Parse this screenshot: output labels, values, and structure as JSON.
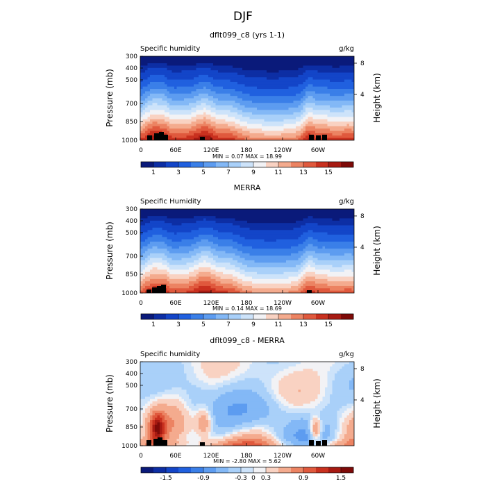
{
  "figure_title": "DJF",
  "colors": {
    "full_scale": [
      "#0a1a7a",
      "#0d2ea4",
      "#1345c8",
      "#2060df",
      "#3a7fe8",
      "#5d9cf0",
      "#83b8f6",
      "#a9d0f9",
      "#cde3fa",
      "#f2f2f5",
      "#f9d2c2",
      "#f4ab8e",
      "#ec8362",
      "#e0593d",
      "#c9311f",
      "#a71a12",
      "#7e0a08"
    ],
    "diff_scale": [
      "#0a1a7a",
      "#0d2ea4",
      "#1345c8",
      "#2060df",
      "#3a7fe8",
      "#5d9cf0",
      "#83b8f6",
      "#a9d0f9",
      "#cde3fa",
      "#f2f2f5",
      "#f9d2c2",
      "#f4ab8e",
      "#ec8362",
      "#e0593d",
      "#c9311f",
      "#a71a12",
      "#7e0a08"
    ],
    "terrain": "#000000"
  },
  "chart_data": [
    {
      "type": "heatmap",
      "title": "dflt099_c8 (yrs 1-1)",
      "left_label": "Specific humidity",
      "units": "g/kg",
      "ylabel": "Pressure (mb)",
      "ylabel_right": "Height (km)",
      "y_ticks": [
        "300",
        "400",
        "500",
        "700",
        "850",
        "1000"
      ],
      "y_right_ticks": [
        "8",
        "4"
      ],
      "x_ticks": [
        "0",
        "60E",
        "120E",
        "180",
        "120W",
        "60W"
      ],
      "stats": "MIN =    0.07   MAX =   18.99",
      "colorbar_labels": [
        "1",
        "3",
        "5",
        "7",
        "9",
        "11",
        "13",
        "15"
      ],
      "levels": [
        0.5,
        1,
        2,
        3,
        4,
        5,
        6,
        7,
        8,
        9,
        10,
        11,
        12,
        13,
        14,
        15,
        16
      ],
      "scale": "full",
      "field": "model_q"
    },
    {
      "type": "heatmap",
      "title": "MERRA",
      "left_label": "Specific Humidity",
      "units": "g/kg",
      "ylabel": "Pressure (mb)",
      "ylabel_right": "Height (km)",
      "y_ticks": [
        "300",
        "400",
        "500",
        "700",
        "850",
        "1000"
      ],
      "y_right_ticks": [
        "8",
        "4"
      ],
      "x_ticks": [
        "0",
        "60E",
        "120E",
        "180",
        "120W",
        "60W"
      ],
      "stats": "MIN =    0.14   MAX =   18.69",
      "colorbar_labels": [
        "1",
        "3",
        "5",
        "7",
        "9",
        "11",
        "13",
        "15"
      ],
      "levels": [
        0.5,
        1,
        2,
        3,
        4,
        5,
        6,
        7,
        8,
        9,
        10,
        11,
        12,
        13,
        14,
        15,
        16
      ],
      "scale": "full",
      "field": "merra_q"
    },
    {
      "type": "heatmap",
      "title": "dflt099_c8 - MERRA",
      "left_label": "Specific humidity",
      "units": "g/kg",
      "ylabel": "Pressure (mb)",
      "ylabel_right": "Height (km)",
      "y_ticks": [
        "300",
        "400",
        "500",
        "700",
        "850",
        "1000"
      ],
      "y_right_ticks": [
        "8",
        "4"
      ],
      "x_ticks": [
        "0",
        "60E",
        "120E",
        "180",
        "120W",
        "60W"
      ],
      "stats": "MIN =   -2.80   MAX =    5.62",
      "colorbar_labels": [
        "-1.5",
        "-0.9",
        "-0.3",
        "0",
        "0.3",
        "0.9",
        "1.5"
      ],
      "levels": [
        -2.1,
        -1.8,
        -1.5,
        -1.2,
        -0.9,
        -0.6,
        -0.3,
        -0.1,
        0,
        0.1,
        0.3,
        0.6,
        0.9,
        1.2,
        1.5,
        1.8,
        2.1
      ],
      "scale": "diff",
      "field": "diff_q"
    }
  ]
}
